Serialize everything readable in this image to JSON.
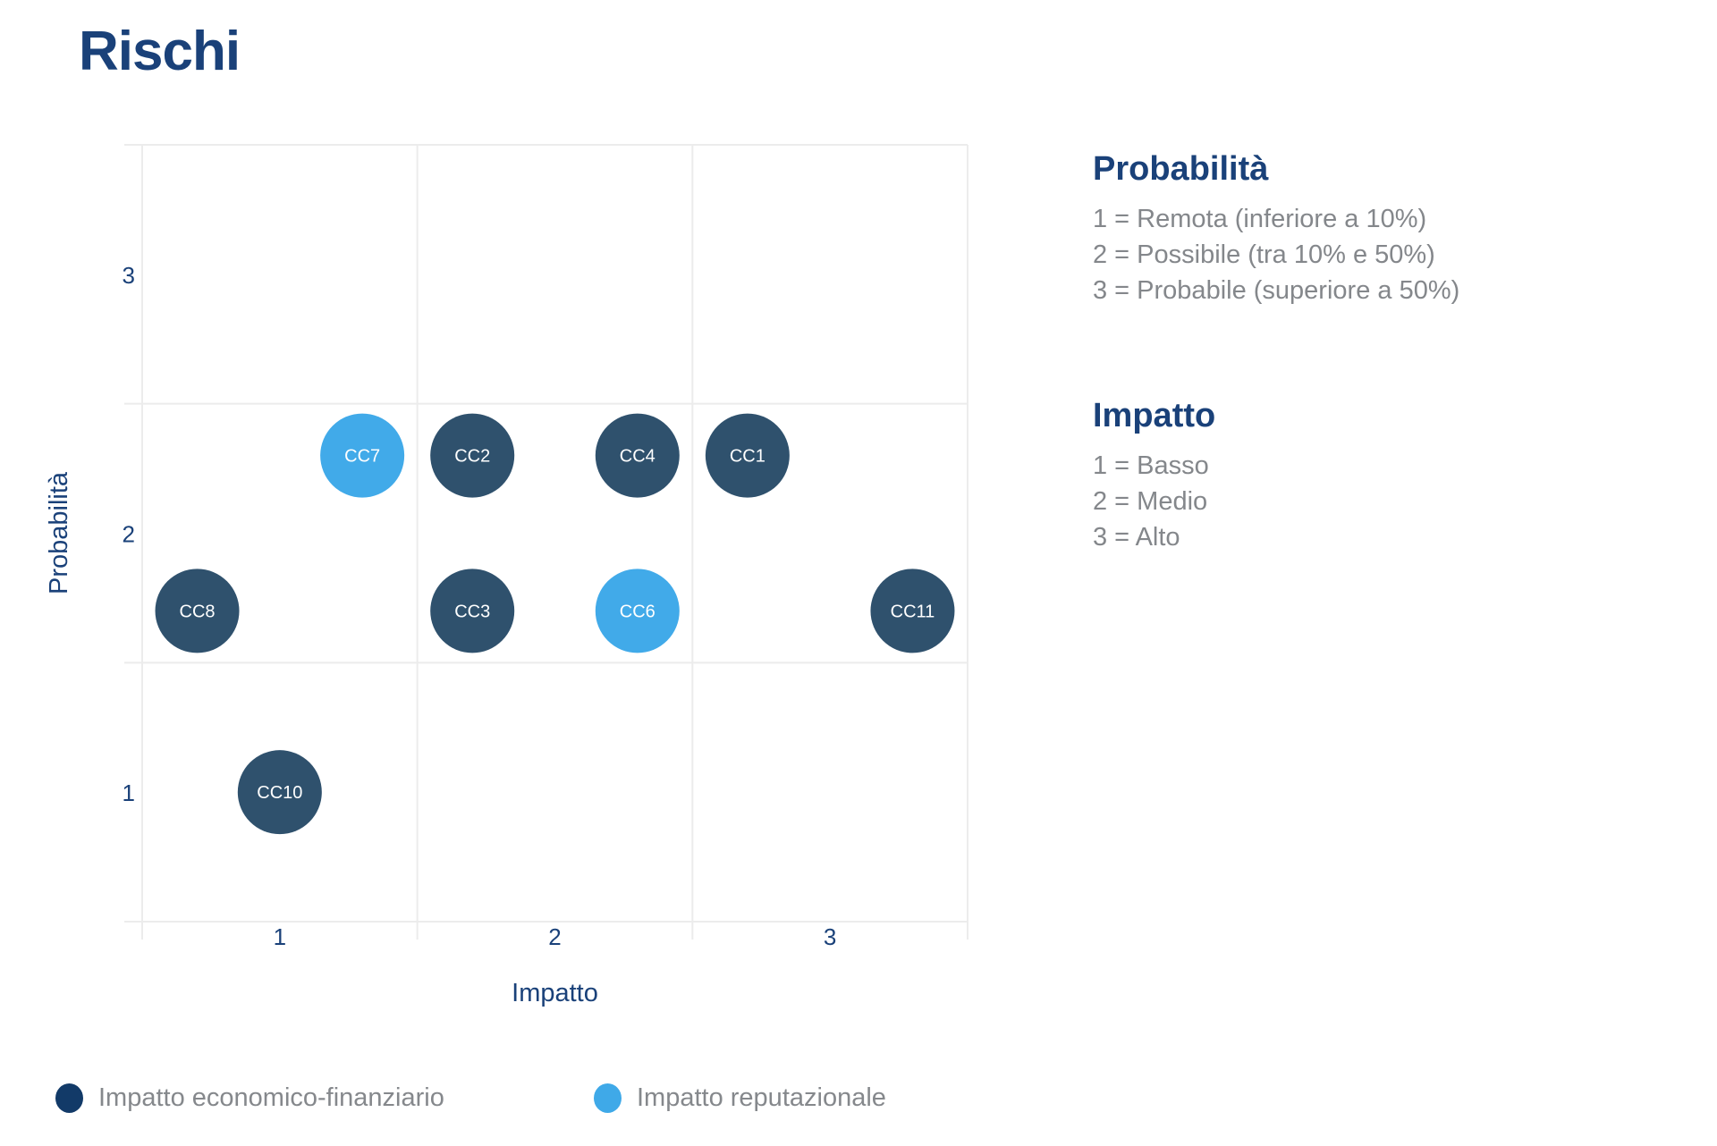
{
  "title": "Rischi",
  "colors": {
    "navy_text": "#1a4179",
    "gridline": "#ececec",
    "bubble_economic": "#2f516d",
    "bubble_reputational": "#41aae9",
    "legend_dot_economic": "#123a68",
    "legend_dot_reputational": "#3fa9e8",
    "bubble_label": "#ffffff",
    "body_gray": "#84878b"
  },
  "chart_data": {
    "type": "scatter",
    "title": "Rischi",
    "xlabel": "Impatto",
    "ylabel": "Probabilità",
    "xlim": [
      0.5,
      3.5
    ],
    "ylim": [
      0.5,
      3.5
    ],
    "x_ticks": [
      "1",
      "2",
      "3"
    ],
    "y_ticks": [
      "1",
      "2",
      "3"
    ],
    "grid": true,
    "legend_position": "bottom",
    "series": [
      {
        "name": "Impatto economico-finanziario",
        "color": "#2f516d",
        "points": [
          {
            "label": "CC2",
            "x": 1.7,
            "y": 2.3
          },
          {
            "label": "CC4",
            "x": 2.3,
            "y": 2.3
          },
          {
            "label": "CC1",
            "x": 2.7,
            "y": 2.3
          },
          {
            "label": "CC8",
            "x": 0.7,
            "y": 1.7
          },
          {
            "label": "CC3",
            "x": 1.7,
            "y": 1.7
          },
          {
            "label": "CC11",
            "x": 3.3,
            "y": 1.7
          },
          {
            "label": "CC10",
            "x": 1.0,
            "y": 1.0
          }
        ]
      },
      {
        "name": "Impatto reputazionale",
        "color": "#41aae9",
        "points": [
          {
            "label": "CC7",
            "x": 1.3,
            "y": 2.3
          },
          {
            "label": "CC6",
            "x": 2.3,
            "y": 1.7
          }
        ]
      }
    ]
  },
  "side_panel": {
    "probabilita": {
      "heading": "Probabilità",
      "lines": [
        "1 = Remota (inferiore a 10%)",
        "2 = Possibile (tra 10% e 50%)",
        "3 = Probabile (superiore a 50%)"
      ]
    },
    "impatto": {
      "heading": "Impatto",
      "lines": [
        "1 = Basso",
        "2 = Medio",
        "3 = Alto"
      ]
    }
  },
  "legend": {
    "items": [
      {
        "label": "Impatto economico-finanziario",
        "color": "#123a68"
      },
      {
        "label": "Impatto reputazionale",
        "color": "#3fa9e8"
      }
    ]
  }
}
